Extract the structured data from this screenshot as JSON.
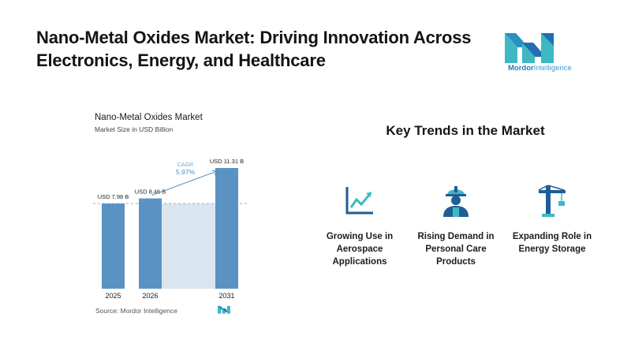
{
  "header": {
    "title": "Nano-Metal Oxides Market: Driving Innovation Across Electronics, Energy, and Healthcare"
  },
  "brand": {
    "name_part1": "Mordor",
    "name_part2": "Intelligence",
    "colors": {
      "teal": "#3fb8c4",
      "blue": "#1f6fb2",
      "bar": "#5a93c3",
      "shade": "#d9e6f0"
    }
  },
  "chart_data": {
    "type": "bar",
    "title": "Nano-Metal Oxides Market",
    "subtitle": "Market Size in USD Billion",
    "categories": [
      "2025",
      "2026",
      "2031"
    ],
    "values": [
      7.98,
      8.46,
      11.31
    ],
    "value_labels": [
      "USD 7.98 B",
      "USD 8.46 B",
      "USD 11.31 B"
    ],
    "cagr_label": "CAGR",
    "cagr_value": "5.97%",
    "ylim": [
      0,
      11.31
    ],
    "source": "Source: Mordor Intelligence"
  },
  "trends": {
    "title": "Key Trends in the Market",
    "items": [
      {
        "icon": "line-chart-icon",
        "label": "Growing Use in Aerospace Applications"
      },
      {
        "icon": "worker-icon",
        "label": "Rising Demand in Personal Care Products"
      },
      {
        "icon": "crane-icon",
        "label": "Expanding Role in Energy Storage"
      }
    ]
  }
}
